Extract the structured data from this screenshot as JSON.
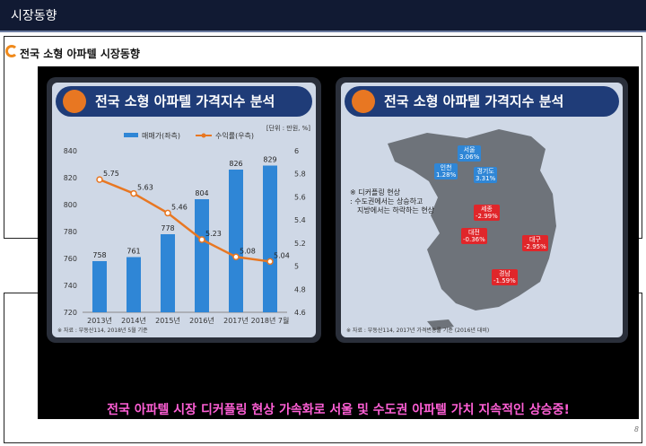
{
  "topbar": {
    "title": "시장동향"
  },
  "section": {
    "title": "전국 소형 아파텔 시장동향"
  },
  "left_panel": {
    "title": "전국 소형 아파텔 가격지수 분석",
    "unit": "[단위 : 만원, %]",
    "source": "※ 자료 : 부동산114, 2018년 5월 기준"
  },
  "right_panel": {
    "title": "전국 소형 아파텔 가격지수 분석",
    "note_line1": "※ 디커플링 현상",
    "note_line2": ": 수도권에서는 상승하고",
    "note_line3": "지방에서는 하락하는 현상",
    "source": "※ 자료 : 부동산114, 2017년 가격변동률 기준 (2016년 대비)",
    "regions": [
      {
        "name": "서울",
        "value": "3.06%",
        "color": "#2f86d6"
      },
      {
        "name": "인천",
        "value": "1.28%",
        "color": "#2f86d6"
      },
      {
        "name": "경기도",
        "value": "3.31%",
        "color": "#2f86d6"
      },
      {
        "name": "세종",
        "value": "-2.99%",
        "color": "#e0262a"
      },
      {
        "name": "대전",
        "value": "-0.36%",
        "color": "#e0262a"
      },
      {
        "name": "대구",
        "value": "-2.95%",
        "color": "#e0262a"
      },
      {
        "name": "경남",
        "value": "-1.59%",
        "color": "#e0262a"
      }
    ]
  },
  "caption": "전국 아파텔 시장 디커플링 현상 가속화로 서울 및 수도권 아파텔 가치 지속적인 상승중!",
  "page_number": "8",
  "chart_data": {
    "type": "bar",
    "categories": [
      "2013년",
      "2014년",
      "2015년",
      "2016년",
      "2017년",
      "2018년 7월"
    ],
    "series": [
      {
        "name": "매매가(좌측)",
        "type": "bar",
        "values": [
          758,
          761,
          778,
          804,
          826,
          829
        ],
        "color": "#2f86d6"
      },
      {
        "name": "수익률(우측)",
        "type": "line",
        "values": [
          5.75,
          5.63,
          5.46,
          5.23,
          5.08,
          5.04
        ],
        "color": "#e87722"
      }
    ],
    "ylim": [
      720,
      840
    ],
    "yticks": [
      720,
      740,
      760,
      780,
      800,
      820,
      840
    ],
    "y2lim": [
      4.6,
      6.0
    ],
    "y2ticks": [
      "4.6",
      "4.8",
      "5",
      "5.2",
      "5.4",
      "5.6",
      "5.8",
      "6"
    ],
    "legend": "top-center",
    "grid": false
  }
}
